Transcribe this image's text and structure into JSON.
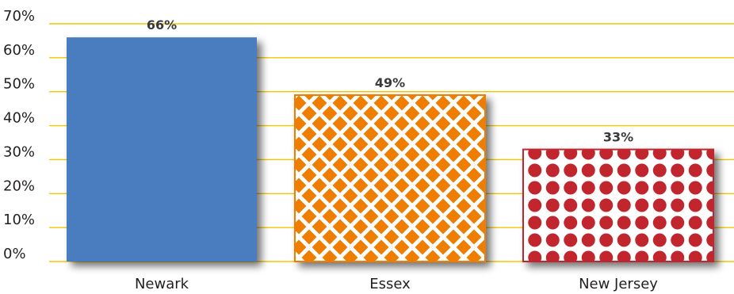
{
  "chart_data": {
    "type": "bar",
    "categories": [
      "Newark",
      "Essex",
      "New Jersey"
    ],
    "values": [
      66,
      49,
      33
    ],
    "value_labels": [
      "66%",
      "49%",
      "33%"
    ],
    "ylim": [
      0,
      70
    ],
    "y_ticks": [
      "0%",
      "10%",
      "20%",
      "30%",
      "40%",
      "50%",
      "60%",
      "70%"
    ],
    "grid": true,
    "grid_color": "#f2c700",
    "bar_styles": [
      {
        "fill": "#4a7dc0",
        "pattern": "solid"
      },
      {
        "fill": "#ef7d00",
        "pattern": "diamond-lattice",
        "pattern_color": "#ffffff"
      },
      {
        "fill": "#ffffff",
        "pattern": "dots",
        "pattern_color": "#c1272d"
      }
    ],
    "title": "",
    "xlabel": "",
    "ylabel": ""
  }
}
